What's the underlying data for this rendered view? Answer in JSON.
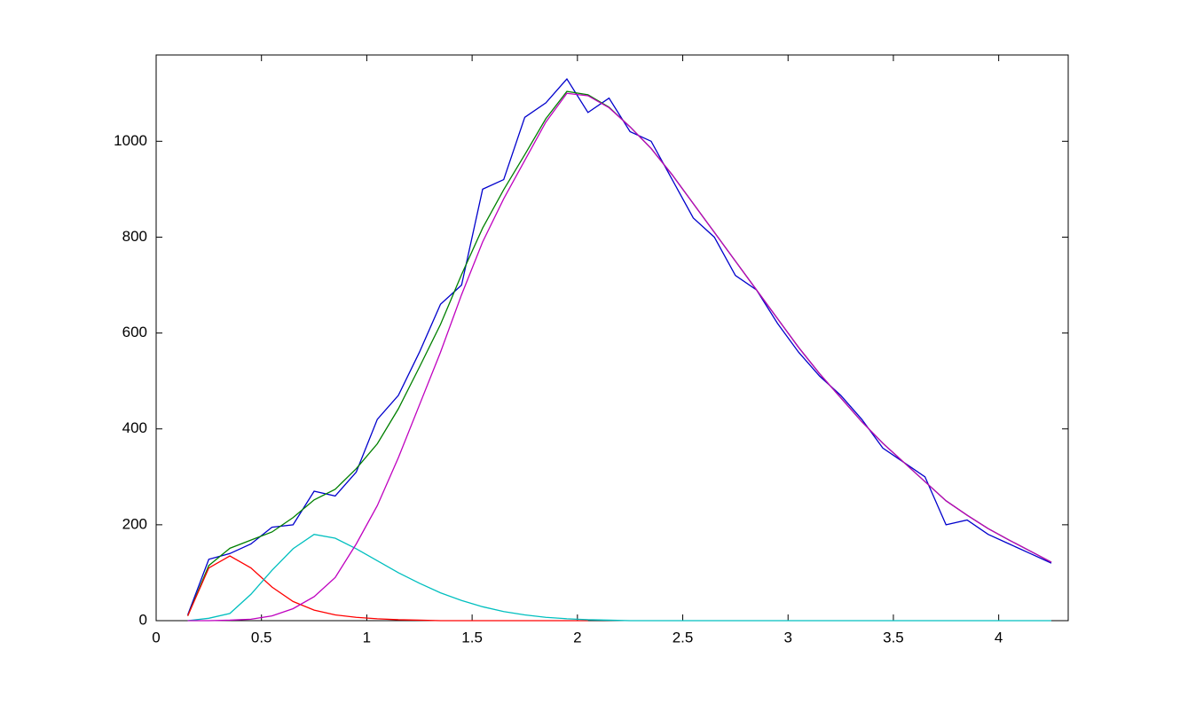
{
  "chart_data": {
    "type": "line",
    "x": [
      0.15,
      0.25,
      0.35,
      0.45,
      0.55,
      0.65,
      0.75,
      0.85,
      0.95,
      1.05,
      1.15,
      1.25,
      1.35,
      1.45,
      1.55,
      1.65,
      1.75,
      1.85,
      1.95,
      2.05,
      2.15,
      2.25,
      2.35,
      2.45,
      2.55,
      2.65,
      2.75,
      2.85,
      2.95,
      3.05,
      3.15,
      3.25,
      3.35,
      3.45,
      3.55,
      3.65,
      3.75,
      3.85,
      3.95,
      4.05,
      4.15,
      4.25
    ],
    "series": [
      {
        "color": "#0000cc",
        "values": [
          12,
          128,
          140,
          160,
          195,
          200,
          270,
          260,
          310,
          420,
          470,
          560,
          660,
          700,
          900,
          920,
          1050,
          1080,
          1130,
          1060,
          1090,
          1020,
          1000,
          920,
          840,
          800,
          720,
          690,
          620,
          560,
          510,
          470,
          420,
          360,
          330,
          300,
          200,
          210,
          180,
          160,
          140,
          120
        ]
      },
      {
        "color": "#008000",
        "values": [
          10,
          115,
          151,
          168,
          185,
          215,
          252,
          274,
          317,
          369,
          442,
          529,
          618,
          722,
          819,
          899,
          972,
          1047,
          1104,
          1097,
          1071,
          1030,
          985,
          930,
          870,
          810,
          750,
          690,
          630,
          570,
          515,
          465,
          415,
          370,
          330,
          290,
          250,
          220,
          192,
          168,
          145,
          122
        ]
      },
      {
        "color": "#ff0000",
        "values": [
          10,
          110,
          135,
          110,
          70,
          40,
          22,
          12,
          7,
          4,
          2,
          1,
          0,
          0,
          0,
          0,
          0,
          0,
          0,
          0,
          null,
          null,
          null,
          null,
          null,
          null,
          null,
          null,
          null,
          null,
          null,
          null,
          null,
          null,
          null,
          null,
          null,
          null,
          null,
          null,
          null,
          null
        ]
      },
      {
        "color": "#00bfbf",
        "values": [
          0,
          5,
          15,
          55,
          105,
          150,
          180,
          172,
          150,
          125,
          100,
          78,
          58,
          42,
          29,
          19,
          12,
          7,
          4,
          2,
          1,
          0,
          0,
          0,
          0,
          0,
          0,
          0,
          0,
          0,
          0,
          0,
          0,
          0,
          0,
          0,
          0,
          0,
          0,
          0,
          0,
          0
        ]
      },
      {
        "color": "#bf00bf",
        "values": [
          0,
          0,
          1,
          3,
          10,
          25,
          50,
          90,
          160,
          240,
          340,
          450,
          560,
          680,
          790,
          880,
          960,
          1040,
          1100,
          1095,
          1070,
          1030,
          985,
          930,
          870,
          810,
          750,
          690,
          630,
          570,
          515,
          465,
          415,
          370,
          330,
          290,
          250,
          220,
          192,
          168,
          145,
          122
        ]
      }
    ],
    "xlim": [
      0,
      4.33
    ],
    "ylim": [
      0,
      1180
    ],
    "xticks": [
      0,
      0.5,
      1,
      1.5,
      2,
      2.5,
      3,
      3.5,
      4
    ],
    "yticks": [
      0,
      200,
      400,
      600,
      800,
      1000
    ]
  }
}
